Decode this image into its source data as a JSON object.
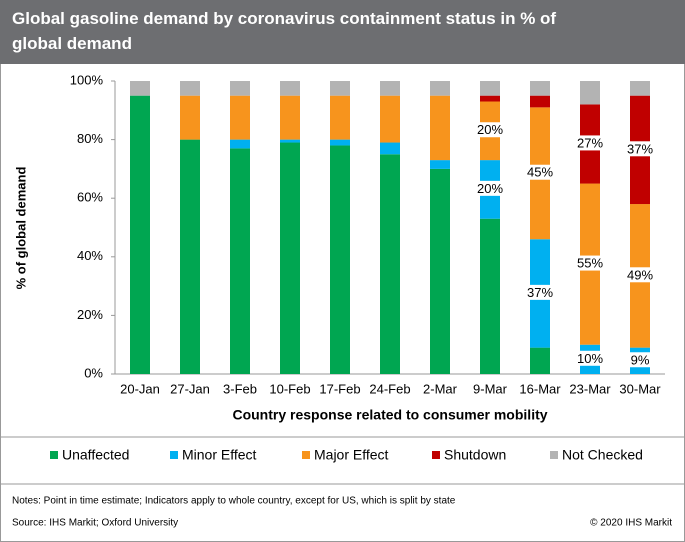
{
  "chart_data": {
    "type": "stacked_bar",
    "title": "Global gasoline demand by coronavirus containment status in % of global demand",
    "y_label": "% of global demand",
    "x_label": "Country response related to consumer mobility",
    "categories": [
      "20-Jan",
      "27-Jan",
      "3-Feb",
      "10-Feb",
      "17-Feb",
      "24-Feb",
      "2-Mar",
      "9-Mar",
      "16-Mar",
      "23-Mar",
      "30-Mar"
    ],
    "series": [
      {
        "name": "Unaffected",
        "color": "#00a651",
        "values": [
          95,
          80,
          77,
          79,
          78,
          75,
          70,
          53,
          9,
          0,
          0
        ],
        "value_labels": [
          null,
          null,
          null,
          null,
          null,
          null,
          null,
          null,
          null,
          null,
          null
        ]
      },
      {
        "name": "Minor Effect",
        "color": "#00b0f0",
        "values": [
          0,
          0,
          3,
          1,
          2,
          4,
          3,
          20,
          37,
          10,
          9
        ],
        "value_labels": [
          null,
          null,
          null,
          null,
          null,
          null,
          null,
          "20%",
          "37%",
          "10%",
          "9%"
        ]
      },
      {
        "name": "Major Effect",
        "color": "#f7941d",
        "values": [
          0,
          15,
          15,
          15,
          15,
          16,
          22,
          20,
          45,
          55,
          49
        ],
        "value_labels": [
          null,
          null,
          null,
          null,
          null,
          null,
          null,
          "20%",
          "45%",
          "55%",
          "49%"
        ]
      },
      {
        "name": "Shutdown",
        "color": "#c00000",
        "values": [
          0,
          0,
          0,
          0,
          0,
          0,
          0,
          2,
          4,
          27,
          37
        ],
        "value_labels": [
          null,
          null,
          null,
          null,
          null,
          null,
          null,
          null,
          null,
          "27%",
          "37%"
        ]
      },
      {
        "name": "Not Checked",
        "color": "#b3b3b3",
        "values": [
          5,
          5,
          5,
          5,
          5,
          5,
          5,
          5,
          5,
          8,
          5
        ],
        "value_labels": [
          null,
          null,
          null,
          null,
          null,
          null,
          null,
          null,
          null,
          null,
          null
        ]
      }
    ],
    "ylim": [
      0,
      100
    ],
    "yticks": [
      {
        "value": 0,
        "label": "0%"
      },
      {
        "value": 20,
        "label": "20%"
      },
      {
        "value": 40,
        "label": "40%"
      },
      {
        "value": 60,
        "label": "60%"
      },
      {
        "value": 80,
        "label": "80%"
      },
      {
        "value": 100,
        "label": "100%"
      }
    ],
    "notes": "Notes: Point in time estimate; Indicators apply to whole country, except for US, which is split by state",
    "source": "Source: IHS Markit; Oxford University",
    "copyright": "© 2020 IHS Markit"
  }
}
